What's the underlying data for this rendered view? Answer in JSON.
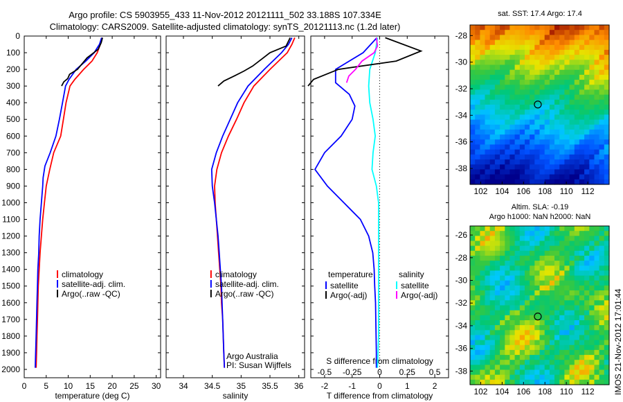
{
  "header": {
    "line1": "Argo profile: CS 5903955_433 11-Nov-2012 20121111_502 33.188S 107.334E",
    "line2": "Climatology: CARS2009. Satellite-adjusted climatology: synTS_20121113.nc (1.2d later)"
  },
  "footer": {
    "stamp": "IMOS 21-Nov-2012 17:01:44"
  },
  "annotations": {
    "argo": "Argo Australia",
    "pi": "PI: Susan Wijffels"
  },
  "chart_data": [
    {
      "type": "line",
      "id": "temperature",
      "xlabel": "temperature (deg C)",
      "ylabel": "",
      "xlim": [
        0,
        31
      ],
      "ylim": [
        2050,
        0
      ],
      "xticks": [
        0,
        5,
        10,
        15,
        20,
        25,
        30
      ],
      "yticks": [
        0,
        100,
        200,
        300,
        400,
        500,
        600,
        700,
        800,
        900,
        1000,
        1100,
        1200,
        1300,
        1400,
        1500,
        1600,
        1700,
        1800,
        1900,
        2000
      ],
      "legend": [
        "climatology",
        "satellite-adj. clim.",
        "Argo(..raw -QC)"
      ],
      "legend_position": "center",
      "series": [
        {
          "name": "climatology",
          "color": "#ff0000",
          "points": [
            [
              17.6,
              10
            ],
            [
              17.3,
              50
            ],
            [
              16.6,
              100
            ],
            [
              15.4,
              150
            ],
            [
              13.5,
              200
            ],
            [
              11.5,
              260
            ],
            [
              10.4,
              300
            ],
            [
              9.5,
              400
            ],
            [
              8.9,
              500
            ],
            [
              8.3,
              600
            ],
            [
              6.7,
              700
            ],
            [
              5.8,
              800
            ],
            [
              5.0,
              900
            ],
            [
              4.6,
              1000
            ],
            [
              4.2,
              1100
            ],
            [
              3.9,
              1200
            ],
            [
              3.6,
              1300
            ],
            [
              3.4,
              1400
            ],
            [
              3.2,
              1500
            ],
            [
              3.1,
              1600
            ],
            [
              3.0,
              1700
            ],
            [
              2.9,
              1800
            ],
            [
              2.8,
              1900
            ],
            [
              2.7,
              1990
            ]
          ]
        },
        {
          "name": "satellite-adj. clim.",
          "color": "#0000ff",
          "points": [
            [
              17.6,
              10
            ],
            [
              17.1,
              50
            ],
            [
              15.9,
              100
            ],
            [
              14.0,
              150
            ],
            [
              11.8,
              200
            ],
            [
              10.2,
              260
            ],
            [
              9.4,
              300
            ],
            [
              8.7,
              400
            ],
            [
              8.0,
              500
            ],
            [
              7.2,
              600
            ],
            [
              5.9,
              700
            ],
            [
              4.7,
              780
            ],
            [
              4.3,
              850
            ],
            [
              4.2,
              900
            ],
            [
              3.9,
              1000
            ],
            [
              3.6,
              1100
            ],
            [
              3.4,
              1200
            ],
            [
              3.3,
              1300
            ],
            [
              3.1,
              1400
            ],
            [
              3.0,
              1500
            ],
            [
              2.9,
              1600
            ],
            [
              2.8,
              1700
            ],
            [
              2.7,
              1800
            ],
            [
              2.6,
              1900
            ],
            [
              2.5,
              1990
            ]
          ]
        },
        {
          "name": "Argo(..raw -QC)",
          "color": "#000000",
          "points": [
            [
              17.8,
              10
            ],
            [
              17.5,
              40
            ],
            [
              16.8,
              80
            ],
            [
              14.3,
              130
            ],
            [
              12.1,
              200
            ],
            [
              10.3,
              230
            ],
            [
              9.9,
              255
            ],
            [
              9.0,
              275
            ],
            [
              8.5,
              300
            ]
          ]
        }
      ]
    },
    {
      "type": "line",
      "id": "salinity",
      "xlabel": "salinity",
      "ylabel": "",
      "xlim": [
        33.7,
        36.1
      ],
      "ylim": [
        2050,
        0
      ],
      "xticks": [
        34,
        34.5,
        35,
        35.5,
        36
      ],
      "xticklabels": [
        "34",
        "34.5",
        "35",
        "35.5",
        "36"
      ],
      "legend": [
        "climatology",
        "satellite-adj. clim.",
        "Argo(..raw -QC)"
      ],
      "legend_position": "center",
      "series": [
        {
          "name": "climatology",
          "color": "#ff0000",
          "points": [
            [
              35.93,
              10
            ],
            [
              35.88,
              50
            ],
            [
              35.8,
              100
            ],
            [
              35.5,
              200
            ],
            [
              35.22,
              300
            ],
            [
              35.05,
              400
            ],
            [
              34.92,
              500
            ],
            [
              34.78,
              600
            ],
            [
              34.66,
              700
            ],
            [
              34.58,
              800
            ],
            [
              34.54,
              900
            ],
            [
              34.55,
              1000
            ],
            [
              34.57,
              1100
            ],
            [
              34.59,
              1200
            ],
            [
              34.61,
              1300
            ],
            [
              34.63,
              1400
            ],
            [
              34.65,
              1500
            ],
            [
              34.66,
              1600
            ],
            [
              34.68,
              1700
            ],
            [
              34.69,
              1800
            ],
            [
              34.7,
              1900
            ],
            [
              34.71,
              1990
            ]
          ]
        },
        {
          "name": "satellite-adj. clim.",
          "color": "#0000ff",
          "points": [
            [
              35.88,
              10
            ],
            [
              35.82,
              50
            ],
            [
              35.7,
              100
            ],
            [
              35.4,
              200
            ],
            [
              35.12,
              300
            ],
            [
              34.94,
              400
            ],
            [
              34.81,
              500
            ],
            [
              34.68,
              600
            ],
            [
              34.57,
              700
            ],
            [
              34.49,
              800
            ],
            [
              34.5,
              900
            ],
            [
              34.54,
              1000
            ],
            [
              34.57,
              1100
            ],
            [
              34.6,
              1200
            ],
            [
              34.62,
              1300
            ],
            [
              34.64,
              1400
            ],
            [
              34.66,
              1500
            ],
            [
              34.67,
              1600
            ],
            [
              34.68,
              1700
            ],
            [
              34.69,
              1800
            ],
            [
              34.7,
              1900
            ],
            [
              34.71,
              1990
            ]
          ]
        },
        {
          "name": "Argo(..raw -QC)",
          "color": "#000000",
          "points": [
            [
              35.85,
              10
            ],
            [
              35.78,
              60
            ],
            [
              35.5,
              100
            ],
            [
              35.35,
              140
            ],
            [
              35.2,
              180
            ],
            [
              35.05,
              210
            ],
            [
              34.88,
              240
            ],
            [
              34.7,
              270
            ],
            [
              34.6,
              300
            ]
          ]
        }
      ]
    },
    {
      "type": "line",
      "id": "difference",
      "xlabel": "T difference from climatology",
      "xlabel_top": "S difference from climatology",
      "ylabel": "",
      "xlim": [
        -2.5,
        2.5
      ],
      "ylim": [
        2050,
        0
      ],
      "xticks": [
        -2,
        -1,
        0,
        1,
        2
      ],
      "xticklabels": [
        "-2",
        "-1",
        "0",
        "1",
        "2"
      ],
      "sticks": [
        -0.5,
        -0.25,
        0,
        0.25,
        0.5
      ],
      "sticklabels": [
        "-0.5",
        "-0.25",
        "0",
        "0.25",
        "0.5"
      ],
      "legend_groups": [
        {
          "title": "temperature",
          "items": [
            "satellite",
            "Argo(-adj)"
          ]
        },
        {
          "title": "salinity",
          "items": [
            "satellite",
            "Argo(-adj)"
          ]
        }
      ],
      "series": [
        {
          "name": "temperature satellite",
          "color": "#0000ff",
          "points": [
            [
              -0.1,
              10
            ],
            [
              -0.6,
              100
            ],
            [
              -1.6,
              200
            ],
            [
              -1.6,
              280
            ],
            [
              -1.1,
              350
            ],
            [
              -0.9,
              420
            ],
            [
              -1.0,
              500
            ],
            [
              -1.4,
              600
            ],
            [
              -2.0,
              700
            ],
            [
              -2.35,
              800
            ],
            [
              -1.9,
              900
            ],
            [
              -1.3,
              1000
            ],
            [
              -0.7,
              1100
            ],
            [
              -0.4,
              1200
            ],
            [
              -0.25,
              1300
            ],
            [
              -0.2,
              1400
            ],
            [
              -0.18,
              1500
            ],
            [
              -0.15,
              1600
            ],
            [
              -0.14,
              1700
            ],
            [
              -0.13,
              1800
            ],
            [
              -0.12,
              1900
            ],
            [
              -0.12,
              1990
            ]
          ]
        },
        {
          "name": "salinity satellite",
          "color": "#00ffff",
          "points": [
            [
              -0.02,
              10
            ],
            [
              -0.04,
              100
            ],
            [
              -0.09,
              200
            ],
            [
              -0.1,
              300
            ],
            [
              -0.09,
              400
            ],
            [
              -0.06,
              500
            ],
            [
              -0.04,
              600
            ],
            [
              -0.06,
              700
            ],
            [
              -0.07,
              800
            ],
            [
              -0.03,
              900
            ],
            [
              -0.01,
              1000
            ],
            [
              -0.01,
              1200
            ],
            [
              -0.01,
              1500
            ],
            [
              -0.01,
              1800
            ],
            [
              -0.02,
              1990
            ]
          ]
        },
        {
          "name": "temperature Argo(-adj)",
          "color": "#000000",
          "points": [
            [
              0.2,
              10
            ],
            [
              1.5,
              90
            ],
            [
              0.6,
              150
            ],
            [
              -1.5,
              200
            ],
            [
              -2.4,
              260
            ],
            [
              -2.6,
              300
            ]
          ]
        },
        {
          "name": "salinity Argo(-adj)",
          "color": "#ff00ff",
          "points": [
            [
              -0.03,
              10
            ],
            [
              -0.02,
              60
            ],
            [
              -0.05,
              100
            ],
            [
              -0.16,
              150
            ],
            [
              -0.22,
              200
            ],
            [
              -0.28,
              240
            ],
            [
              -0.3,
              280
            ]
          ]
        }
      ]
    },
    {
      "type": "heatmap",
      "id": "sst-map",
      "title": "sat. SST: 17.4 Argo: 17.4",
      "xlim": [
        101,
        114
      ],
      "ylim": [
        -39.2,
        -27.2
      ],
      "xticks": [
        102,
        104,
        106,
        108,
        110,
        112
      ],
      "yticks": [
        -28,
        -30,
        -32,
        -34,
        -36,
        -38
      ],
      "marker": [
        107.334,
        -33.188
      ]
    },
    {
      "type": "heatmap",
      "id": "sla-map",
      "title": "Altim. SLA: -0.19",
      "subtitle": "Argo h1000: NaN h2000: NaN",
      "xlim": [
        101,
        114
      ],
      "ylim": [
        -39.2,
        -25.2
      ],
      "xticks": [
        102,
        104,
        106,
        108,
        110,
        112
      ],
      "yticks": [
        -26,
        -28,
        -30,
        -32,
        -34,
        -36,
        -38
      ],
      "marker": [
        107.334,
        -33.188
      ]
    }
  ]
}
